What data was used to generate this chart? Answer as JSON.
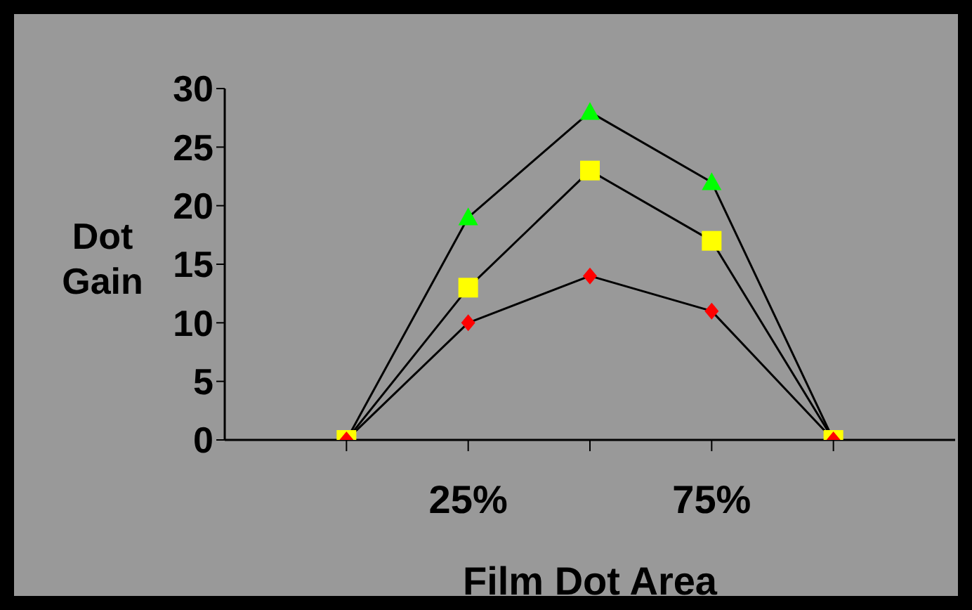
{
  "chart_data": {
    "type": "line",
    "xlabel": "Film Dot Area",
    "ylabel": "Dot Gain",
    "x": [
      0,
      25,
      50,
      75,
      100
    ],
    "xlim": [
      -25,
      125
    ],
    "xticks": [
      {
        "value": 0,
        "label": null
      },
      {
        "value": 25,
        "label": "25%"
      },
      {
        "value": 50,
        "label": null
      },
      {
        "value": 75,
        "label": "75%"
      },
      {
        "value": 100,
        "label": null
      }
    ],
    "ylim": [
      0,
      30
    ],
    "yticks": [
      0,
      5,
      10,
      15,
      20,
      25,
      30
    ],
    "grid": false,
    "legend": false,
    "series": [
      {
        "color": "#00ff00",
        "marker": "triangle",
        "values": [
          0,
          19,
          28,
          22,
          0
        ]
      },
      {
        "color": "#ffff00",
        "marker": "square",
        "values": [
          0,
          13,
          23,
          17,
          0
        ]
      },
      {
        "color": "#ff0000",
        "marker": "diamond",
        "values": [
          0,
          10,
          14,
          11,
          0
        ]
      }
    ]
  }
}
